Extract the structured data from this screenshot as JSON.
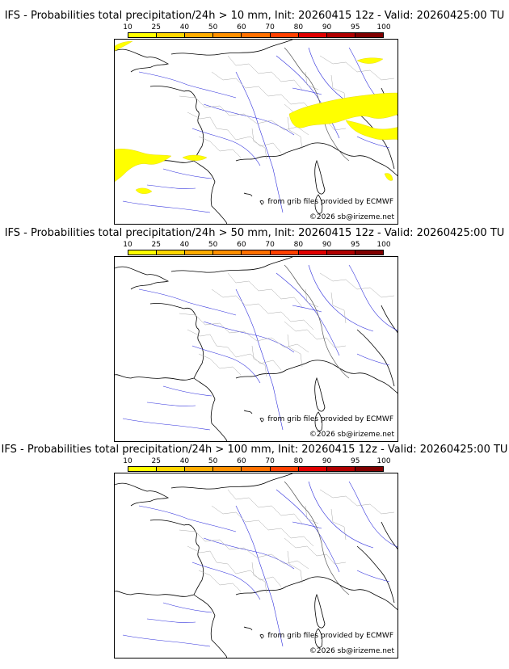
{
  "scale": {
    "labels": [
      "10",
      "25",
      "40",
      "50",
      "60",
      "70",
      "80",
      "90",
      "95",
      "100"
    ],
    "colors": [
      "#ffff00",
      "#ffd700",
      "#ffad00",
      "#ff9000",
      "#ff7000",
      "#ff4000",
      "#e00000",
      "#b00000",
      "#800000"
    ]
  },
  "panels": [
    {
      "title": "IFS - Probabilities total precipitation/24h > 10 mm, Init: 20260415 12z - Valid: 20260425:00 TU",
      "credit_source": "from grib files provided by ECMWF",
      "credit_site": "©2026 sb@irizeme.net",
      "threshold": "10 mm",
      "has_precip_areas": true
    },
    {
      "title": "IFS - Probabilities total precipitation/24h > 50 mm, Init: 20260415 12z - Valid: 20260425:00 TU",
      "credit_source": "from grib files provided by ECMWF",
      "credit_site": "©2026 sb@irizeme.net",
      "threshold": "50 mm",
      "has_precip_areas": false
    },
    {
      "title": "IFS - Probabilities total precipitation/24h > 100 mm, Init: 20260415 12z - Valid: 20260425:00 TU",
      "credit_source": "from grib files provided by ECMWF",
      "credit_site": "©2026 sb@irizeme.net",
      "threshold": "100 mm",
      "has_precip_areas": false
    }
  ]
}
